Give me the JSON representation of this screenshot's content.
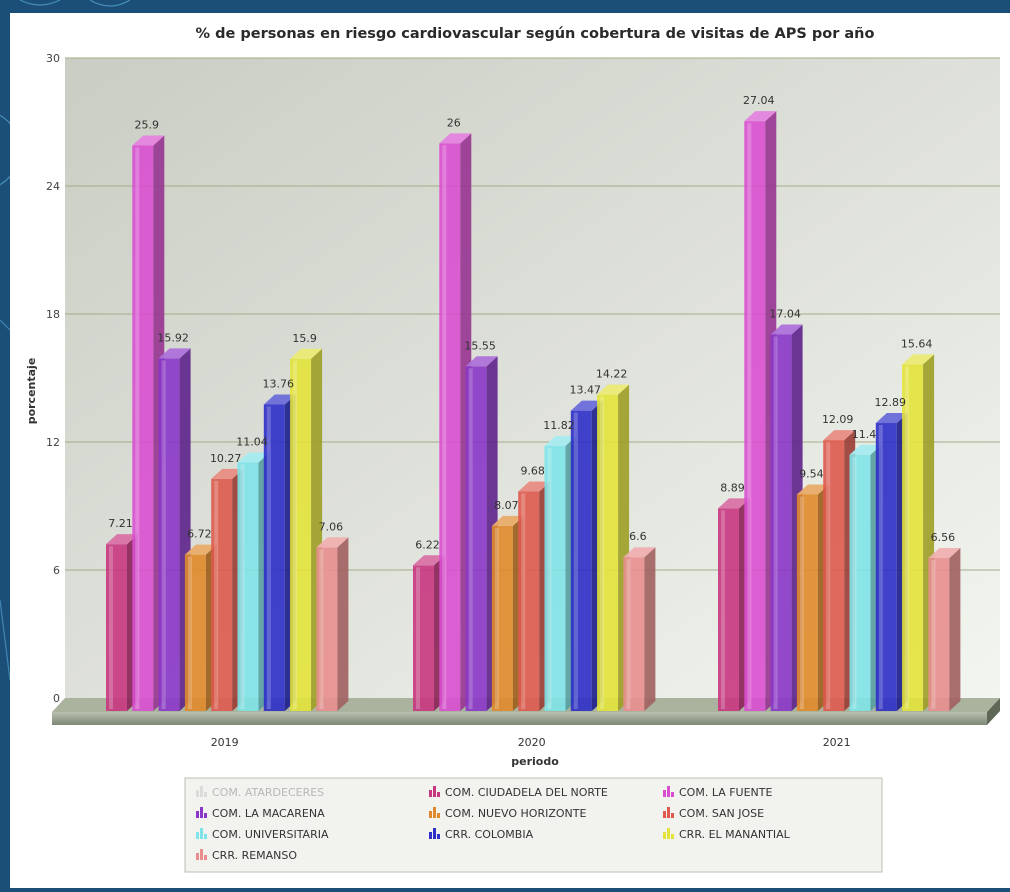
{
  "chart_data": {
    "type": "bar",
    "title": "% de personas en riesgo cardiovascular según cobertura de visitas de APS por año",
    "xlabel": "periodo",
    "ylabel": "porcentaje",
    "ylim": [
      0,
      30
    ],
    "yticks": [
      "0",
      "6",
      "12",
      "18",
      "24",
      "30"
    ],
    "grid": true,
    "legend_position": "bottom",
    "categories": [
      "2019",
      "2020",
      "2021"
    ],
    "series": [
      {
        "name": "COM. ATARDECERES",
        "color": "#c8c8c8",
        "hidden": true,
        "values": [
          null,
          null,
          null
        ],
        "labels": [
          "",
          "",
          ""
        ]
      },
      {
        "name": "COM. CIUDADELA DEL NORTE",
        "color": "#c8367f",
        "values": [
          7.21,
          6.22,
          8.89
        ],
        "labels": [
          "7.21",
          "6.22",
          "8.89"
        ]
      },
      {
        "name": "COM. LA FUENTE",
        "color": "#d94fd0",
        "values": [
          25.9,
          26,
          27.04
        ],
        "labels": [
          "25.9",
          "26",
          "27.04"
        ]
      },
      {
        "name": "COM. LA MACARENA",
        "color": "#8a36c8",
        "values": [
          15.92,
          15.55,
          17.04
        ],
        "labels": [
          "15.92",
          "15.55",
          "17.04"
        ]
      },
      {
        "name": "COM. NUEVO HORIZONTE",
        "color": "#e0892a",
        "values": [
          6.72,
          8.07,
          9.54
        ],
        "labels": [
          "6.72",
          "8.07",
          "9.54"
        ]
      },
      {
        "name": "COM. SAN JOSE",
        "color": "#de5a4e",
        "values": [
          10.27,
          9.68,
          12.09
        ],
        "labels": [
          "10.27",
          "9.68",
          "12.09"
        ]
      },
      {
        "name": "COM. UNIVERSITARIA",
        "color": "#7fe3e8",
        "values": [
          11.04,
          11.82,
          11.4
        ],
        "labels": [
          "11.04",
          "11.82",
          "11.4"
        ]
      },
      {
        "name": "CRR. COLOMBIA",
        "color": "#2d2fc8",
        "values": [
          13.76,
          13.47,
          12.89
        ],
        "labels": [
          "13.76",
          "13.47",
          "12.89"
        ]
      },
      {
        "name": "CRR. EL MANANTIAL",
        "color": "#e3e33a",
        "values": [
          15.9,
          14.22,
          15.64
        ],
        "labels": [
          "15.9",
          "14.22",
          "15.64"
        ]
      },
      {
        "name": "CRR. REMANSO",
        "color": "#e88e8e",
        "values": [
          7.06,
          6.6,
          6.56
        ],
        "labels": [
          "7.06",
          "6.6",
          "6.56"
        ]
      }
    ]
  }
}
